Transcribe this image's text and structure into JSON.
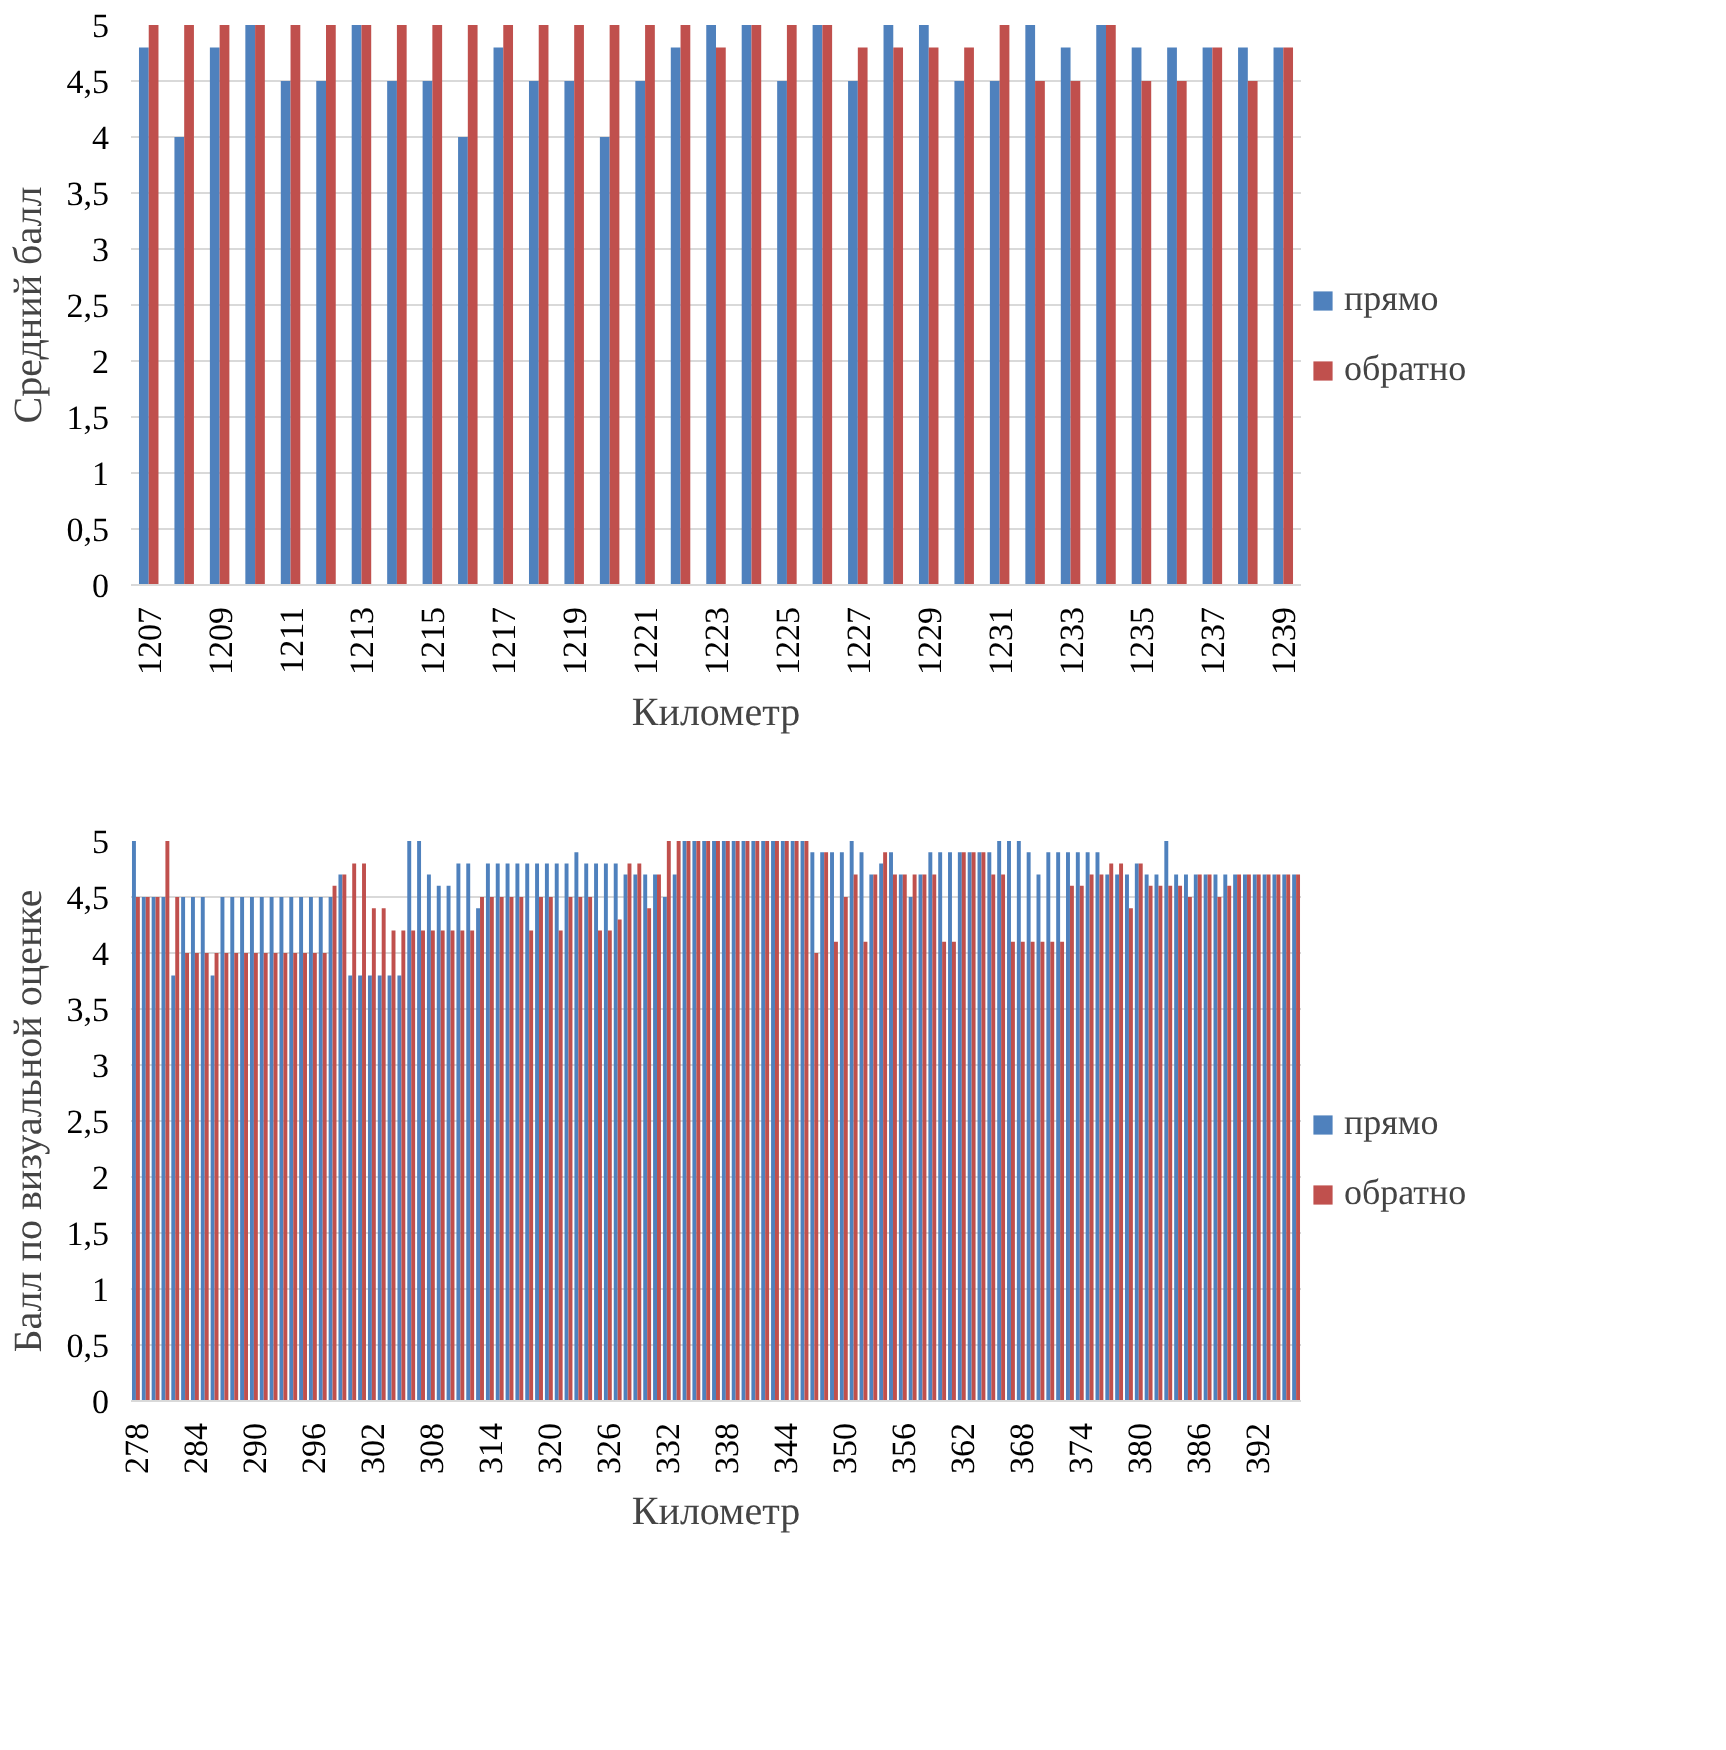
{
  "chart_data": [
    {
      "type": "bar",
      "xlabel": "Километр",
      "ylabel": "Средний балл",
      "categories": [
        "1207",
        null,
        "1209",
        null,
        "1211",
        null,
        "1213",
        null,
        "1215",
        null,
        "1217",
        null,
        "1219",
        null,
        "1221",
        null,
        "1223",
        null,
        "1225",
        null,
        "1227",
        null,
        "1229",
        null,
        "1231",
        null,
        "1233",
        null,
        "1235",
        null,
        "1237",
        null,
        "1239"
      ],
      "series": [
        {
          "name": "прямо",
          "color": "#4f81bd",
          "values": [
            4.8,
            4,
            4.8,
            5,
            4.5,
            4.5,
            5,
            4.5,
            4.5,
            4,
            4.8,
            4.5,
            4.5,
            4,
            4.5,
            4.8,
            5,
            5,
            4.5,
            5,
            4.5,
            5,
            5,
            4.5,
            4.5,
            5,
            4.8,
            5,
            4.8,
            4.8,
            4.8,
            4.8,
            4.8
          ]
        },
        {
          "name": "обратно",
          "color": "#c0504d",
          "values": [
            5,
            5,
            5,
            5,
            5,
            5,
            5,
            5,
            5,
            5,
            5,
            5,
            5,
            5,
            5,
            5,
            4.8,
            5,
            5,
            5,
            4.8,
            4.8,
            4.8,
            4.8,
            5,
            4.5,
            4.5,
            5,
            4.5,
            4.5,
            4.8,
            4.5,
            4.8
          ]
        }
      ],
      "ylim": [
        0,
        5
      ],
      "yticks": [
        0,
        {
          "value": 0.5,
          "label": "0,5"
        },
        1,
        {
          "value": 1.5,
          "label": "1,5"
        },
        2,
        {
          "value": 2.5,
          "label": "2,5"
        },
        3,
        {
          "value": 3.5,
          "label": "3,5"
        },
        4,
        {
          "value": 4.5,
          "label": "4,5"
        },
        5
      ],
      "grid": "y",
      "legend": "right"
    },
    {
      "type": "bar",
      "xlabel": "Километр",
      "ylabel": "Балл по визуальной оценке",
      "categories": [
        "278",
        null,
        null,
        null,
        null,
        null,
        "284",
        null,
        null,
        null,
        null,
        null,
        "290",
        null,
        null,
        null,
        null,
        null,
        "296",
        null,
        null,
        null,
        null,
        null,
        "302",
        null,
        null,
        null,
        null,
        null,
        "308",
        null,
        null,
        null,
        null,
        null,
        "314",
        null,
        null,
        null,
        null,
        null,
        "320",
        null,
        null,
        null,
        null,
        null,
        "326",
        null,
        null,
        null,
        null,
        null,
        "332",
        null,
        null,
        null,
        null,
        null,
        "338",
        null,
        null,
        null,
        null,
        null,
        "344",
        null,
        null,
        null,
        null,
        null,
        "350",
        null,
        null,
        null,
        null,
        null,
        "356",
        null,
        null,
        null,
        null,
        null,
        "362",
        null,
        null,
        null,
        null,
        null,
        "368",
        null,
        null,
        null,
        null,
        null,
        "374",
        null,
        null,
        null,
        null,
        null,
        "380",
        null,
        null,
        null,
        null,
        null,
        "386",
        null,
        null,
        null,
        null,
        null,
        "392",
        null,
        null,
        null,
        null
      ],
      "series": [
        {
          "name": "прямо",
          "color": "#4f81bd",
          "values": [
            5,
            4.5,
            4.5,
            4.5,
            3.8,
            4.5,
            4.5,
            4.5,
            3.8,
            4.5,
            4.5,
            4.5,
            4.5,
            4.5,
            4.5,
            4.5,
            4.5,
            4.5,
            4.5,
            4.5,
            4.5,
            4.7,
            3.8,
            3.8,
            3.8,
            3.8,
            3.8,
            3.8,
            5,
            5,
            4.7,
            4.6,
            4.6,
            4.8,
            4.8,
            4.4,
            4.8,
            4.8,
            4.8,
            4.8,
            4.8,
            4.8,
            4.8,
            4.8,
            4.8,
            4.9,
            4.8,
            4.8,
            4.8,
            4.8,
            4.7,
            4.7,
            4.7,
            4.7,
            4.5,
            4.7,
            5,
            5,
            5,
            5,
            5,
            5,
            5,
            5,
            5,
            5,
            5,
            5,
            5,
            4.9,
            4.9,
            4.9,
            4.9,
            5,
            4.9,
            4.7,
            4.8,
            4.9,
            4.7,
            4.5,
            4.7,
            4.9,
            4.9,
            4.9,
            4.9,
            4.9,
            4.9,
            4.9,
            5,
            5,
            5,
            4.9,
            4.7,
            4.9,
            4.9,
            4.9,
            4.9,
            4.9,
            4.9,
            4.7,
            4.7,
            4.7,
            4.8,
            4.7,
            4.7,
            5,
            4.7,
            4.7,
            4.7,
            4.7,
            4.7,
            4.7,
            4.7,
            4.7,
            4.7,
            4.7,
            4.7,
            4.7,
            4.7
          ]
        },
        {
          "name": "обратно",
          "color": "#c0504d",
          "values": [
            4.5,
            4.5,
            4.5,
            5,
            4.5,
            4,
            4,
            4,
            4,
            4,
            4,
            4,
            4,
            4,
            4,
            4,
            4,
            4,
            4,
            4,
            4.6,
            4.7,
            4.8,
            4.8,
            4.4,
            4.4,
            4.2,
            4.2,
            4.2,
            4.2,
            4.2,
            4.2,
            4.2,
            4.2,
            4.2,
            4.5,
            4.5,
            4.5,
            4.5,
            4.5,
            4.2,
            4.5,
            4.5,
            4.2,
            4.5,
            4.5,
            4.5,
            4.2,
            4.2,
            4.3,
            4.8,
            4.8,
            4.4,
            4.7,
            5,
            5,
            5,
            5,
            5,
            5,
            5,
            5,
            5,
            5,
            5,
            5,
            5,
            5,
            5,
            4,
            4.9,
            4.1,
            4.5,
            4.7,
            4.1,
            4.7,
            4.9,
            4.7,
            4.7,
            4.7,
            4.7,
            4.7,
            4.1,
            4.1,
            4.9,
            4.9,
            4.9,
            4.7,
            4.7,
            4.1,
            4.1,
            4.1,
            4.1,
            4.1,
            4.1,
            4.6,
            4.6,
            4.7,
            4.7,
            4.8,
            4.8,
            4.4,
            4.8,
            4.6,
            4.6,
            4.6,
            4.6,
            4.5,
            4.7,
            4.7,
            4.5,
            4.6,
            4.7,
            4.7,
            4.7,
            4.7,
            4.7,
            4.7,
            4.7
          ]
        }
      ],
      "ylim": [
        0,
        5
      ],
      "yticks": [
        0,
        {
          "value": 0.5,
          "label": "0,5"
        },
        1,
        {
          "value": 1.5,
          "label": "1,5"
        },
        2,
        {
          "value": 2.5,
          "label": "2,5"
        },
        3,
        {
          "value": 3.5,
          "label": "3,5"
        },
        4,
        {
          "value": 4.5,
          "label": "4,5"
        },
        5
      ],
      "grid": "y",
      "legend": "right"
    }
  ]
}
